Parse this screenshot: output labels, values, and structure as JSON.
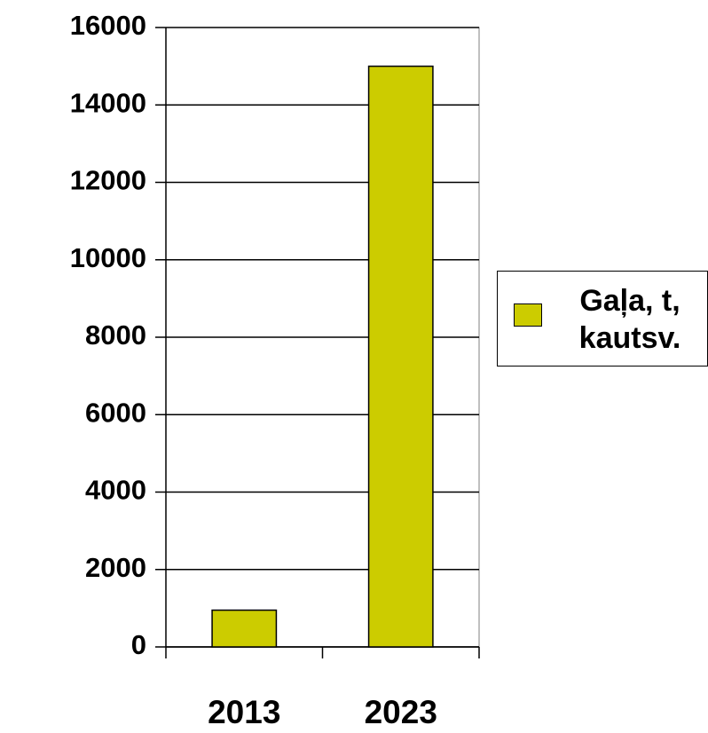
{
  "chart_data": {
    "type": "bar",
    "categories": [
      "2013",
      "2023"
    ],
    "series": [
      {
        "name": "Gaļa, t, kautsv.",
        "color": "#cccc00",
        "values": [
          950,
          15000
        ]
      }
    ],
    "ylim": [
      0,
      16000
    ],
    "yticks": [
      0,
      2000,
      4000,
      6000,
      8000,
      10000,
      12000,
      14000,
      16000
    ],
    "grid": true,
    "legend": "right"
  }
}
